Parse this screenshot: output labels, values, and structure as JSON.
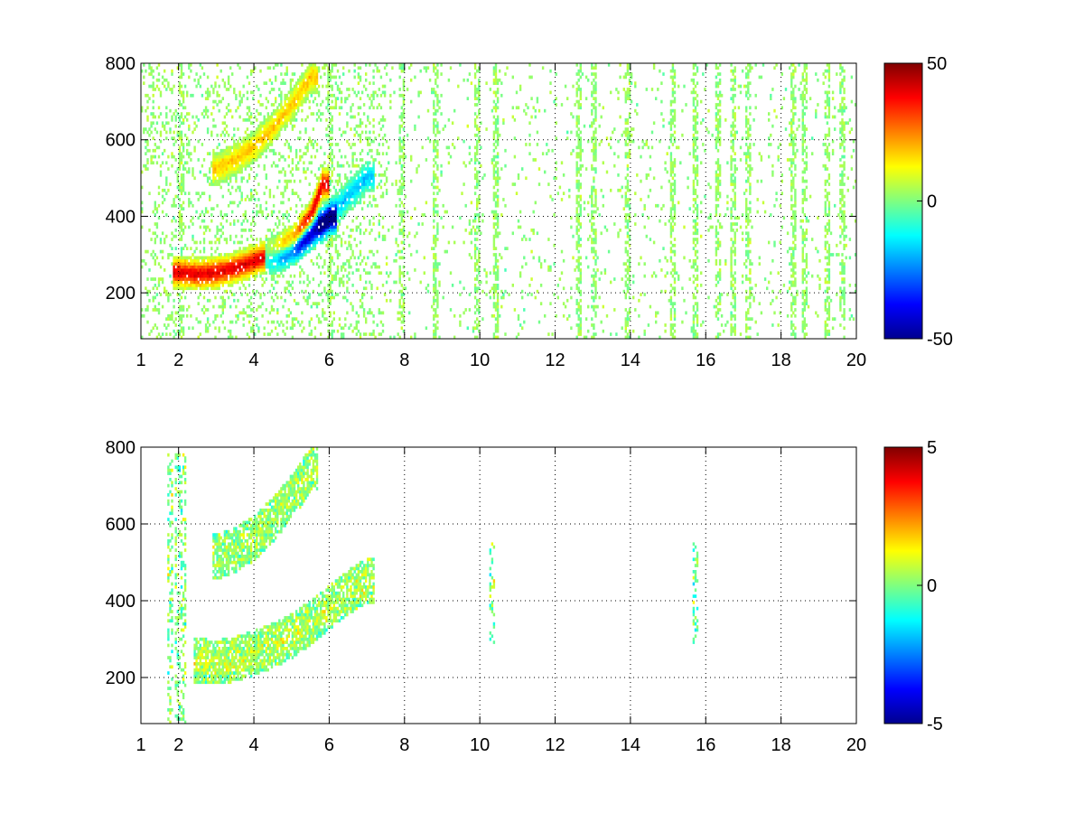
{
  "chart_data": [
    {
      "type": "heatmap",
      "title": "",
      "xlabel": "",
      "ylabel": "",
      "xlim": [
        1,
        20
      ],
      "ylim": [
        80,
        800
      ],
      "x_ticks": [
        "1",
        "2",
        "4",
        "6",
        "8",
        "10",
        "12",
        "14",
        "16",
        "18",
        "20"
      ],
      "x_tick_values": [
        1,
        2,
        4,
        6,
        8,
        10,
        12,
        14,
        16,
        18,
        20
      ],
      "y_ticks": [
        "200",
        "400",
        "600",
        "800"
      ],
      "y_tick_values": [
        200,
        400,
        600,
        800
      ],
      "grid": true,
      "colorbar": {
        "colormap": "jet",
        "min": -50,
        "max": 50,
        "tick_labels": [
          "50",
          "0",
          "-50"
        ],
        "tick_values": [
          50,
          0,
          -50
        ]
      },
      "features": [
        {
          "description": "positive ridge",
          "x": [
            2.0,
            2.5,
            3.0,
            3.5,
            4.0,
            4.5,
            5.0,
            5.5,
            5.8
          ],
          "y": [
            250,
            245,
            250,
            262,
            280,
            300,
            330,
            400,
            480
          ],
          "value": 40
        },
        {
          "description": "negative ridge",
          "x": [
            4.4,
            4.8,
            5.2,
            5.6,
            6.0
          ],
          "y": [
            290,
            300,
            325,
            360,
            390
          ],
          "value": -45
        },
        {
          "description": "upper positive band",
          "x": [
            3.0,
            3.5,
            4.0,
            4.5,
            5.0,
            5.5
          ],
          "y": [
            520,
            545,
            580,
            630,
            690,
            760
          ],
          "value": 18
        },
        {
          "description": "outer negative band",
          "x": [
            5.8,
            6.2,
            6.6,
            7.0
          ],
          "y": [
            380,
            420,
            460,
            500
          ],
          "value": -18
        }
      ],
      "vertical_streaks_x": [
        2.05,
        6.0,
        7.9,
        8.8,
        9.9,
        10.4,
        12.6,
        13.0,
        13.9,
        15.1,
        15.7,
        16.3,
        16.7,
        17.1,
        18.3,
        18.6,
        19.2,
        19.6
      ]
    },
    {
      "type": "heatmap",
      "title": "",
      "xlabel": "",
      "ylabel": "",
      "xlim": [
        1,
        20
      ],
      "ylim": [
        80,
        800
      ],
      "x_ticks": [
        "1",
        "2",
        "4",
        "6",
        "8",
        "10",
        "12",
        "14",
        "16",
        "18",
        "20"
      ],
      "x_tick_values": [
        1,
        2,
        4,
        6,
        8,
        10,
        12,
        14,
        16,
        18,
        20
      ],
      "y_ticks": [
        "200",
        "400",
        "600",
        "800"
      ],
      "y_tick_values": [
        200,
        400,
        600,
        800
      ],
      "grid": true,
      "colorbar": {
        "colormap": "jet",
        "min": -5,
        "max": 5,
        "tick_labels": [
          "5",
          "0",
          "-5"
        ],
        "tick_values": [
          5,
          0,
          -5
        ]
      },
      "features": [
        {
          "description": "main ridge",
          "x": [
            2.5,
            3.0,
            3.5,
            4.0,
            4.5,
            5.0,
            5.5,
            6.0,
            6.5,
            7.0
          ],
          "y": [
            240,
            235,
            245,
            260,
            280,
            305,
            340,
            380,
            420,
            450
          ],
          "value": 0.5
        },
        {
          "description": "upper band",
          "x": [
            3.0,
            3.5,
            4.0,
            4.5,
            5.0,
            5.5
          ],
          "y": [
            510,
            530,
            560,
            610,
            670,
            740
          ],
          "value": 0.3
        }
      ],
      "vertical_streaks_x": [
        1.75,
        1.95,
        2.1,
        10.3,
        15.7
      ]
    }
  ]
}
